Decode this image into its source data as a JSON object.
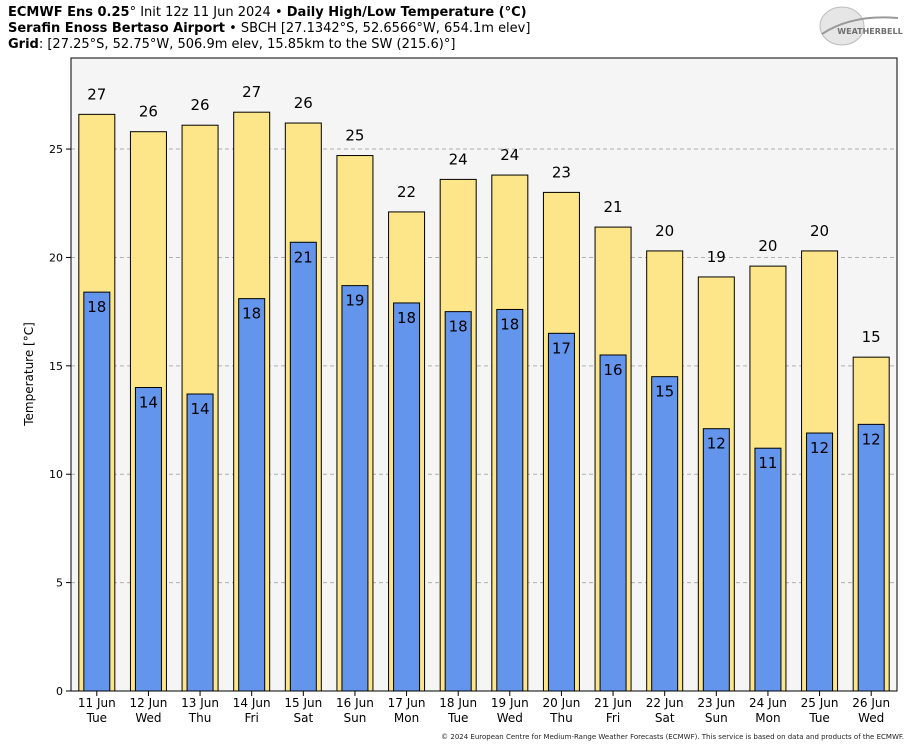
{
  "header": {
    "line1_bold": "ECMWF Ens 0.25",
    "line1_deg": "°",
    "line1_init": " Init 12z 11 Jun 2024",
    "line1_sep": " • ",
    "line1_title": "Daily High/Low Temperature (°C)",
    "line2_bold": "Serafin Enoss Bertaso Airport",
    "line2_rest": " • SBCH [27.1342°S, 52.6566°W, 654.1m elev]",
    "line3_bold": "Grid",
    "line3_rest": ": [27.25°S, 52.75°W, 506.9m elev, 15.85km to the SW (215.6)°]"
  },
  "logo": {
    "text": "WEATHERBELL"
  },
  "copyright": "© 2024 European Centre for Medium-Range Weather Forecasts (ECMWF). This service is based on data and products of the ECMWF.",
  "colors": {
    "high": "#fde68a",
    "low": "#6495ed",
    "plot_bg": "#f5f5f5",
    "border": "#000000"
  },
  "chart_data": {
    "type": "bar",
    "title": "Daily High/Low Temperature (°C)",
    "xlabel": "",
    "ylabel": "Temperature [°C]",
    "ylim": [
      0,
      29.2
    ],
    "yticks": [
      0,
      5,
      10,
      15,
      20,
      25
    ],
    "grid": true,
    "categories": [
      {
        "date": "11 Jun",
        "day": "Tue"
      },
      {
        "date": "12 Jun",
        "day": "Wed"
      },
      {
        "date": "13 Jun",
        "day": "Thu"
      },
      {
        "date": "14 Jun",
        "day": "Fri"
      },
      {
        "date": "15 Jun",
        "day": "Sat"
      },
      {
        "date": "16 Jun",
        "day": "Sun"
      },
      {
        "date": "17 Jun",
        "day": "Mon"
      },
      {
        "date": "18 Jun",
        "day": "Tue"
      },
      {
        "date": "19 Jun",
        "day": "Wed"
      },
      {
        "date": "20 Jun",
        "day": "Thu"
      },
      {
        "date": "21 Jun",
        "day": "Fri"
      },
      {
        "date": "22 Jun",
        "day": "Sat"
      },
      {
        "date": "23 Jun",
        "day": "Sun"
      },
      {
        "date": "24 Jun",
        "day": "Mon"
      },
      {
        "date": "25 Jun",
        "day": "Tue"
      },
      {
        "date": "26 Jun",
        "day": "Wed"
      }
    ],
    "series": [
      {
        "name": "High",
        "values": [
          26.6,
          25.8,
          26.1,
          26.7,
          26.2,
          24.7,
          22.1,
          23.6,
          23.8,
          23.0,
          21.4,
          20.3,
          19.1,
          19.6,
          20.3,
          15.4
        ],
        "labels": [
          "27",
          "26",
          "26",
          "27",
          "26",
          "25",
          "22",
          "24",
          "24",
          "23",
          "21",
          "20",
          "19",
          "20",
          "20",
          "15"
        ]
      },
      {
        "name": "Low",
        "values": [
          18.4,
          14.0,
          13.7,
          18.1,
          20.7,
          18.7,
          17.9,
          17.5,
          17.6,
          16.5,
          15.5,
          14.5,
          12.1,
          11.2,
          11.9,
          12.3
        ],
        "labels": [
          "18",
          "14",
          "14",
          "18",
          "21",
          "19",
          "18",
          "18",
          "18",
          "17",
          "16",
          "15",
          "12",
          "11",
          "12",
          "12"
        ]
      }
    ]
  }
}
